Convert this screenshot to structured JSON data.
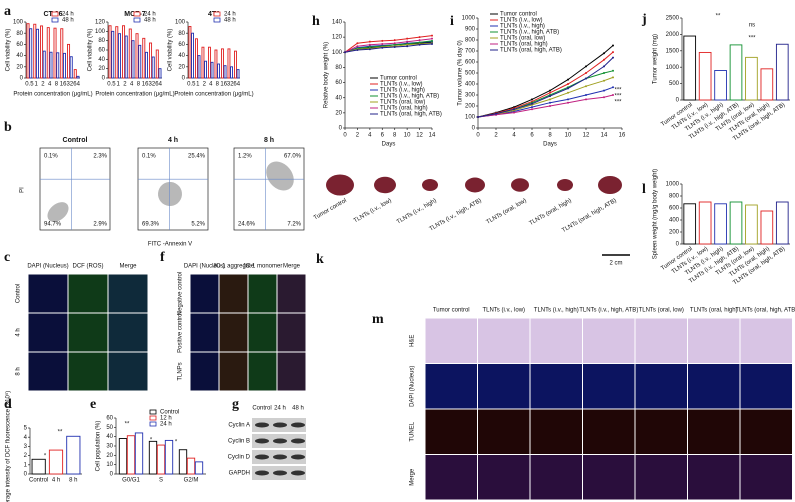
{
  "panel_labels": [
    "a",
    "b",
    "c",
    "d",
    "e",
    "f",
    "g",
    "h",
    "i",
    "j",
    "k",
    "l",
    "m"
  ],
  "chart_data": [
    {
      "type": "bar",
      "title": "CT-26",
      "categories": [
        "0.5",
        "1",
        "2",
        "4",
        "8",
        "16",
        "32",
        "64"
      ],
      "series": [
        {
          "name": "24 h",
          "color": "#e02020",
          "values": [
            97,
            96,
            93,
            90,
            89,
            88,
            60,
            15
          ]
        },
        {
          "name": "48 h",
          "color": "#2030b0",
          "values": [
            88,
            87,
            48,
            46,
            45,
            44,
            38,
            3
          ]
        }
      ],
      "ylim": [
        0,
        100
      ],
      "yticks": [
        0,
        20,
        40,
        60,
        80,
        100
      ],
      "x_label": "Protein concentration (μg/mL)",
      "y_label": "Cell viability (%)"
    },
    {
      "type": "bar",
      "title": "MCF-7",
      "categories": [
        "0.5",
        "1",
        "2",
        "4",
        "8",
        "16",
        "32",
        "64"
      ],
      "series": [
        {
          "name": "24 h",
          "color": "#e02020",
          "values": [
            112,
            110,
            112,
            105,
            95,
            85,
            75,
            60
          ]
        },
        {
          "name": "48 h",
          "color": "#2030b0",
          "values": [
            100,
            95,
            90,
            80,
            70,
            55,
            45,
            20
          ]
        }
      ],
      "ylim": [
        0,
        120
      ],
      "yticks": [
        0,
        20,
        40,
        60,
        80,
        100,
        120
      ],
      "x_label": "Protein concentration (μg/mL)",
      "y_label": "Cell viability (%)"
    },
    {
      "type": "bar",
      "title": "4T1",
      "categories": [
        "0.5",
        "1",
        "2",
        "4",
        "8",
        "16",
        "32",
        "64"
      ],
      "series": [
        {
          "name": "24 h",
          "color": "#e02020",
          "values": [
            92,
            70,
            55,
            55,
            50,
            52,
            52,
            48
          ]
        },
        {
          "name": "48 h",
          "color": "#2030b0",
          "values": [
            80,
            40,
            30,
            28,
            25,
            22,
            20,
            15
          ]
        }
      ],
      "ylim": [
        0,
        100
      ],
      "yticks": [
        0,
        20,
        40,
        60,
        80,
        100
      ],
      "x_label": "Protein concentration (μg/mL)",
      "y_label": "Cell viability (%)"
    },
    {
      "type": "bar",
      "categories": [
        "Control",
        "4 h",
        "8 h"
      ],
      "values": [
        1.6,
        2.6,
        4.1
      ],
      "colors": [
        "#000000",
        "#e02020",
        "#2030b0"
      ],
      "ylim": [
        0,
        5
      ],
      "yticks": [
        0,
        1,
        2,
        3,
        4,
        5
      ],
      "y_label": "Average intensity of DCF fluorescence (×10⁵)",
      "annotations": [
        "*",
        "**"
      ]
    },
    {
      "type": "bar",
      "categories": [
        "G0/G1",
        "S",
        "G2/M"
      ],
      "series": [
        {
          "name": "Control",
          "color": "#000000",
          "values": [
            38,
            35,
            26
          ]
        },
        {
          "name": "12 h",
          "color": "#e02020",
          "values": [
            41,
            31,
            17
          ]
        },
        {
          "name": "24 h",
          "color": "#2030b0",
          "values": [
            44,
            36,
            13
          ]
        }
      ],
      "ylim": [
        0,
        60
      ],
      "yticks": [
        0,
        10,
        20,
        30,
        40,
        50,
        60
      ],
      "y_label": "Cell population (%)",
      "annotations": [
        "**",
        "*",
        "*",
        "*"
      ]
    },
    {
      "type": "line",
      "x": [
        0,
        2,
        4,
        6,
        8,
        10,
        12,
        14
      ],
      "xlim": [
        0,
        14
      ],
      "xticks": [
        0,
        2,
        4,
        6,
        8,
        10,
        12,
        14
      ],
      "x_label": "Days",
      "y_label": "Relative body weight (%)",
      "ylim": [
        0,
        140
      ],
      "yticks": [
        0,
        20,
        40,
        60,
        80,
        100,
        120,
        140
      ],
      "series": [
        {
          "name": "Tumor control",
          "color": "#000000",
          "values": [
            100,
            104,
            106,
            108,
            110,
            111,
            112,
            113
          ]
        },
        {
          "name": "TLNTs (i.v., low)",
          "color": "#e02020",
          "values": [
            100,
            112,
            114,
            115,
            116,
            118,
            120,
            122
          ]
        },
        {
          "name": "TLNTs (i.v., high)",
          "color": "#2030b0",
          "values": [
            100,
            106,
            108,
            109,
            110,
            112,
            113,
            114
          ]
        },
        {
          "name": "TLNTs (i.v., high, ATB)",
          "color": "#109030",
          "values": [
            100,
            105,
            107,
            108,
            110,
            111,
            113,
            115
          ]
        },
        {
          "name": "TLNTs (oral, low)",
          "color": "#a0a020",
          "values": [
            100,
            104,
            105,
            107,
            108,
            110,
            111,
            112
          ]
        },
        {
          "name": "TLNTs (oral, high)",
          "color": "#c02080",
          "values": [
            100,
            108,
            110,
            111,
            112,
            114,
            116,
            118
          ]
        },
        {
          "name": "TLNTs (oral, high, ATB)",
          "color": "#20208a",
          "values": [
            100,
            103,
            104,
            106,
            107,
            108,
            110,
            111
          ]
        }
      ]
    },
    {
      "type": "line",
      "x": [
        0,
        2,
        4,
        6,
        8,
        10,
        12,
        14,
        15
      ],
      "xlim": [
        0,
        16
      ],
      "xticks": [
        0,
        2,
        4,
        6,
        8,
        10,
        12,
        14,
        16
      ],
      "x_label": "Days",
      "y_label": "Tumor  volume (% day 0)",
      "ylim": [
        0,
        1000
      ],
      "yticks": [
        0,
        100,
        200,
        300,
        400,
        500,
        600,
        700,
        800,
        900,
        1000
      ],
      "annotations": [
        "***",
        "***",
        "***"
      ],
      "series": [
        {
          "name": "Tumor control",
          "color": "#000000",
          "values": [
            100,
            140,
            190,
            260,
            340,
            440,
            560,
            680,
            750
          ]
        },
        {
          "name": "TLNTs (i.v., low)",
          "color": "#e02020",
          "values": [
            100,
            135,
            180,
            240,
            320,
            400,
            500,
            620,
            690
          ]
        },
        {
          "name": "TLNTs (i.v., high)",
          "color": "#2030b0",
          "values": [
            100,
            120,
            150,
            190,
            230,
            260,
            300,
            340,
            370
          ]
        },
        {
          "name": "TLNTs (i.v., high, ATB)",
          "color": "#109030",
          "values": [
            100,
            130,
            170,
            230,
            300,
            370,
            450,
            500,
            520
          ]
        },
        {
          "name": "TLNTs (oral, low)",
          "color": "#a0a020",
          "values": [
            100,
            125,
            160,
            210,
            260,
            320,
            380,
            430,
            460
          ]
        },
        {
          "name": "TLNTs (oral, high)",
          "color": "#c02080",
          "values": [
            100,
            120,
            140,
            170,
            200,
            230,
            260,
            280,
            300
          ]
        },
        {
          "name": "TLNTs (oral, high, ATB)",
          "color": "#20208a",
          "values": [
            100,
            130,
            170,
            220,
            290,
            360,
            450,
            560,
            640
          ]
        }
      ]
    },
    {
      "type": "bar",
      "categories": [
        "Tumor control",
        "TLNTs (i.v., low)",
        "TLNTs (i.v., high)",
        "TLNTs (i.v., high, ATB)",
        "TLNTs (oral, low)",
        "TLNTs (oral, high)",
        "TLNTs (oral, high, ATB)"
      ],
      "values": [
        1950,
        1450,
        900,
        1680,
        1300,
        950,
        1700
      ],
      "colors": [
        "#000000",
        "#e02020",
        "#2030b0",
        "#109030",
        "#a0a020",
        "#e02020",
        "#20208a"
      ],
      "ylim": [
        0,
        2500
      ],
      "yticks": [
        0,
        500,
        1000,
        1500,
        2000,
        2500
      ],
      "y_label": "Tumor weight (mg)",
      "annotations": [
        "**",
        "ns",
        "***"
      ]
    },
    {
      "type": "bar",
      "categories": [
        "Tumor control",
        "TLNTs (i.v., low)",
        "TLNTs (i.v., high)",
        "TLNTs (i.v., high, ATB)",
        "TLNTs (oral, low)",
        "TLNTs (oral, high)",
        "TLNTs (oral, high, ATB)"
      ],
      "values": [
        670,
        700,
        670,
        700,
        650,
        550,
        700
      ],
      "colors": [
        "#000000",
        "#e02020",
        "#2030b0",
        "#109030",
        "#a0a020",
        "#e02020",
        "#20208a"
      ],
      "ylim": [
        0,
        1000
      ],
      "yticks": [
        0,
        200,
        400,
        600,
        800,
        1000
      ],
      "y_label": "Spleen weight (mg/g body weight)"
    }
  ],
  "flow_cytometry": {
    "y_label": "PI",
    "x_label": "FITC -Annexin V",
    "plots": [
      {
        "title": "Control",
        "quadrants": [
          "0.1%",
          "2.3%",
          "94.7%",
          "2.9%"
        ]
      },
      {
        "title": "4 h",
        "quadrants": [
          "0.1%",
          "25.4%",
          "69.3%",
          "5.2%"
        ]
      },
      {
        "title": "8 h",
        "quadrants": [
          "1.2%",
          "67.0%",
          "24.6%",
          "7.2%"
        ]
      }
    ]
  },
  "ros_images": {
    "columns": [
      "DAPI (Nucleus)",
      "DCF (ROS)",
      "Merge"
    ],
    "rows": [
      "Control",
      "4 h",
      "8 h"
    ]
  },
  "jc1_images": {
    "columns": [
      "DAPI (Nucleus)",
      "JC-1 aggregate",
      "JC-1 monomer",
      "Merge"
    ],
    "rows": [
      "Negative control",
      "Positive control",
      "TLNPs"
    ]
  },
  "western_blot": {
    "columns": [
      "Control",
      "24 h",
      "48 h"
    ],
    "rows": [
      "Cyclin A",
      "Cyclin B",
      "Cyclin D",
      "GAPDH"
    ]
  },
  "tumor_photo": {
    "labels": [
      "Tumor control",
      "TLNTs (i.v., low)",
      "TLNTs (i.v., high)",
      "TLNTs (i.v., high, ATB)",
      "TLNTs (oral, low)",
      "TLNTs (oral, high)",
      "TLNTs (oral, high, ATB)"
    ],
    "scale": "2 cm"
  },
  "histology": {
    "columns": [
      "Tumor control",
      "TLNTs (i.v., low)",
      "TLNTs (i.v., high)",
      "TLNTs (i.v., high, ATB)",
      "TLNTs (oral, low)",
      "TLNTs (oral, high)",
      "TLNTs (oral, high, ATB)"
    ],
    "rows": [
      "H&E",
      "DAPI (Nucleus)",
      "TUNEL",
      "Merge"
    ]
  }
}
